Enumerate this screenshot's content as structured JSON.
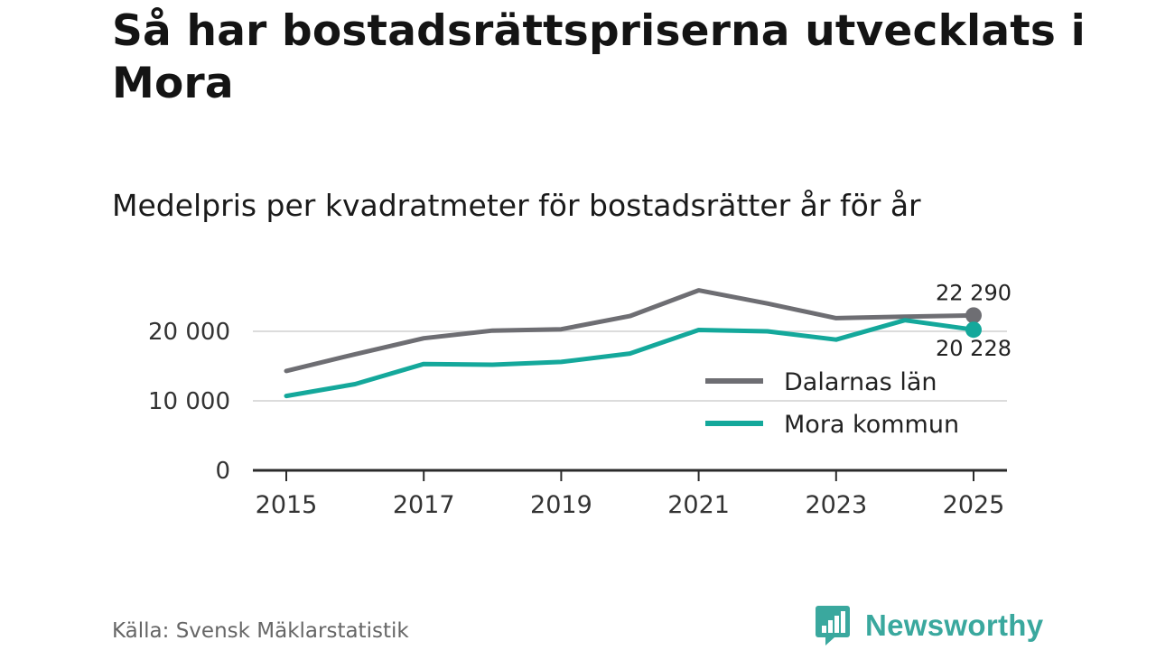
{
  "title": "Så har bostadsrättspriserna utvecklats i Mora",
  "subtitle": "Medelpris per kvadratmeter för bostadsrätter år för år",
  "source": "Källa: Svensk Mäklarstatistik",
  "brand": {
    "name": "Newsworthy",
    "icon": "newsworthy-logo-icon",
    "color": "#3aa89e"
  },
  "chart_data": {
    "type": "line",
    "title": "Medelpris per kvadratmeter för bostadsrätter år för år",
    "xlabel": "",
    "ylabel": "",
    "x": [
      2015,
      2016,
      2017,
      2018,
      2019,
      2020,
      2021,
      2022,
      2023,
      2024,
      2025
    ],
    "x_ticks": [
      2015,
      2017,
      2019,
      2021,
      2023,
      2025
    ],
    "x_tick_labels": [
      "2015",
      "2017",
      "2019",
      "2021",
      "2023",
      "2025"
    ],
    "y_ticks": [
      0,
      10000,
      20000
    ],
    "y_tick_labels": [
      "0",
      "10 000",
      "20 000"
    ],
    "xlim": [
      2015,
      2025
    ],
    "ylim": [
      0,
      26000
    ],
    "grid": true,
    "legend_position": "right",
    "series": [
      {
        "name": "Dalarnas län",
        "color": "#6e6e73",
        "values": [
          14300,
          16700,
          19000,
          20100,
          20300,
          22200,
          25900,
          24000,
          21900,
          22100,
          22290
        ],
        "end_label": "22 290"
      },
      {
        "name": "Mora kommun",
        "color": "#14a89b",
        "values": [
          10700,
          12400,
          15300,
          15200,
          15600,
          16800,
          20200,
          20000,
          18800,
          21600,
          20228
        ],
        "end_label": "20 228"
      }
    ]
  }
}
